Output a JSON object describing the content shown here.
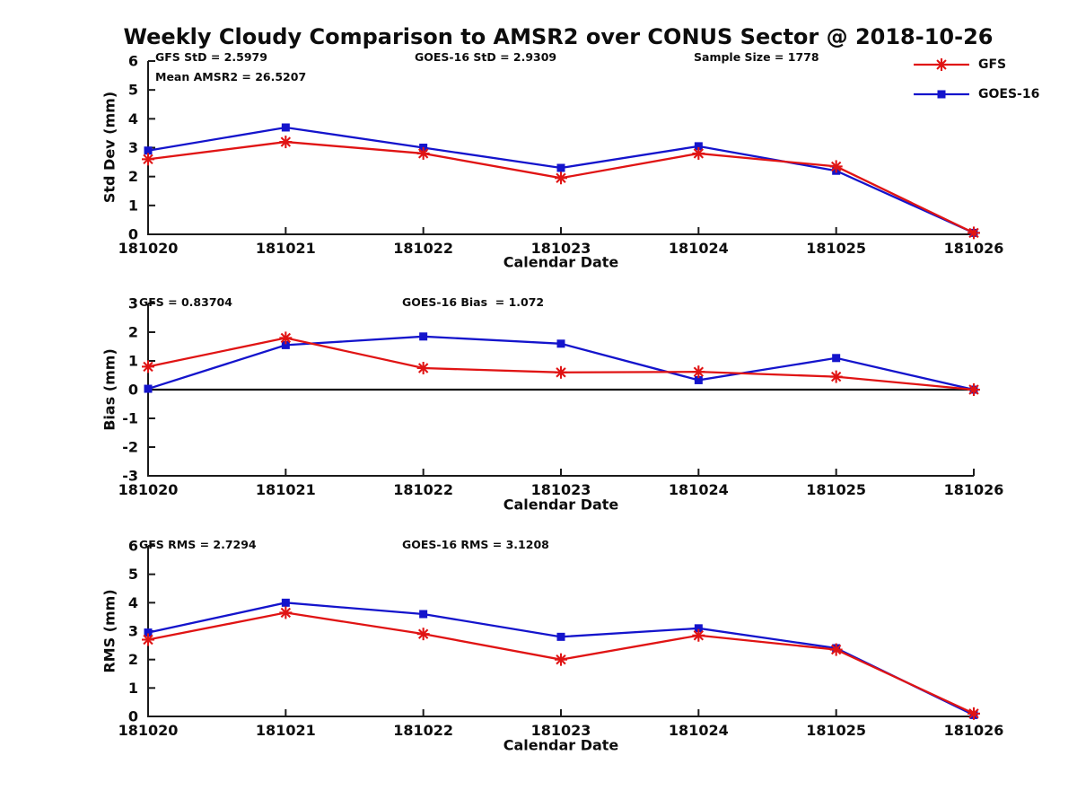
{
  "title": "Weekly Cloudy Comparison to AMSR2 over CONUS Sector @ 2018-10-26",
  "colors": {
    "gfs": "#e01414",
    "goes16": "#1414cc",
    "axis": "#1a1a1a",
    "zero_line": "#111111"
  },
  "legend": {
    "items": [
      {
        "label": "GFS",
        "marker": "asterisk",
        "color": "#e01414"
      },
      {
        "label": "GOES-16",
        "marker": "square",
        "color": "#1414cc"
      }
    ]
  },
  "chart_data": [
    {
      "type": "line",
      "ylabel": "Std Dev (mm)",
      "xlabel": "Calendar Date",
      "ylim": [
        0,
        6
      ],
      "yticks": [
        0,
        1,
        2,
        3,
        4,
        5,
        6
      ],
      "grid": false,
      "zero_line": false,
      "categories": [
        "181020",
        "181021",
        "181022",
        "181023",
        "181024",
        "181025",
        "181026"
      ],
      "annotations": [
        {
          "text": "GFS StD = 2.5979"
        },
        {
          "text": "Mean AMSR2 = 26.5207"
        },
        {
          "text": "GOES-16 StD = 2.9309"
        },
        {
          "text": "Sample Size = 1778"
        }
      ],
      "series": [
        {
          "name": "GFS",
          "color": "#e01414",
          "marker": "asterisk",
          "values": [
            2.6,
            3.2,
            2.8,
            1.95,
            2.8,
            2.35,
            0.05
          ]
        },
        {
          "name": "GOES-16",
          "color": "#1414cc",
          "marker": "square",
          "values": [
            2.9,
            3.7,
            3.0,
            2.3,
            3.05,
            2.2,
            0.05
          ]
        }
      ]
    },
    {
      "type": "line",
      "ylabel": "Bias (mm)",
      "xlabel": "Calendar Date",
      "ylim": [
        -3,
        3
      ],
      "yticks": [
        -3,
        -2,
        -1,
        0,
        1,
        2,
        3
      ],
      "grid": false,
      "zero_line": true,
      "categories": [
        "181020",
        "181021",
        "181022",
        "181023",
        "181024",
        "181025",
        "181026"
      ],
      "annotations": [
        {
          "text": "GFS = 0.83704"
        },
        {
          "text": "GOES-16 Bias  = 1.072"
        }
      ],
      "series": [
        {
          "name": "GFS",
          "color": "#e01414",
          "marker": "asterisk",
          "values": [
            0.8,
            1.8,
            0.75,
            0.6,
            0.62,
            0.45,
            0.0
          ]
        },
        {
          "name": "GOES-16",
          "color": "#1414cc",
          "marker": "square",
          "values": [
            0.03,
            1.55,
            1.85,
            1.6,
            0.33,
            1.1,
            0.0
          ]
        }
      ]
    },
    {
      "type": "line",
      "ylabel": "RMS (mm)",
      "xlabel": "Calendar Date",
      "ylim": [
        0,
        6
      ],
      "yticks": [
        0,
        1,
        2,
        3,
        4,
        5,
        6
      ],
      "grid": false,
      "zero_line": false,
      "categories": [
        "181020",
        "181021",
        "181022",
        "181023",
        "181024",
        "181025",
        "181026"
      ],
      "annotations": [
        {
          "text": "GFS RMS = 2.7294"
        },
        {
          "text": "GOES-16 RMS = 3.1208"
        }
      ],
      "series": [
        {
          "name": "GFS",
          "color": "#e01414",
          "marker": "asterisk",
          "values": [
            2.7,
            3.65,
            2.9,
            2.0,
            2.85,
            2.35,
            0.1
          ]
        },
        {
          "name": "GOES-16",
          "color": "#1414cc",
          "marker": "square",
          "values": [
            2.95,
            4.0,
            3.6,
            2.8,
            3.1,
            2.4,
            0.05
          ]
        }
      ]
    }
  ]
}
